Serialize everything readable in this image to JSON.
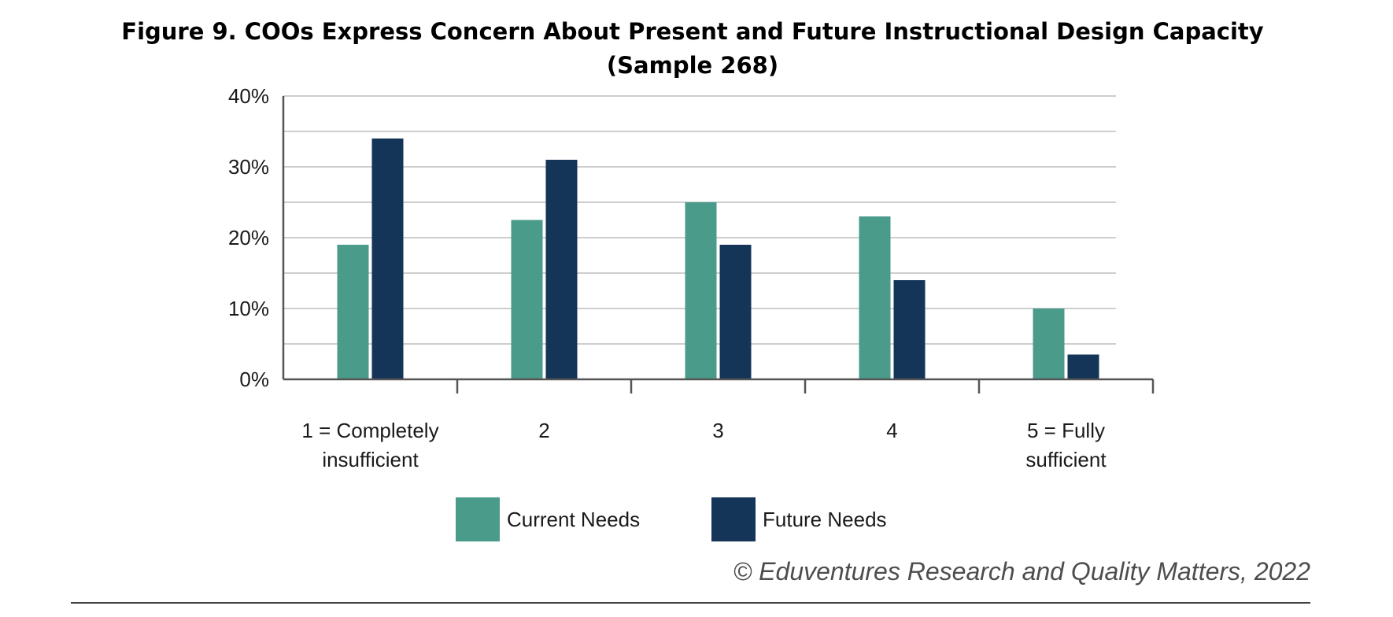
{
  "chart_data": {
    "type": "bar",
    "title": [
      "Figure 9. COOs Express Concern About Present and Future Instructional Design Capacity",
      "(Sample 268)"
    ],
    "categories": [
      [
        "1 = Completely",
        "insufficient"
      ],
      [
        "2"
      ],
      [
        "3"
      ],
      [
        "4"
      ],
      [
        "5 = Fully",
        "sufficient"
      ]
    ],
    "series": [
      {
        "name": "Current Needs",
        "color": "#4a9b89",
        "values": [
          19,
          22.5,
          25,
          23,
          10
        ]
      },
      {
        "name": "Future Needs",
        "color": "#143557",
        "values": [
          34,
          31,
          19,
          14,
          3.5
        ]
      }
    ],
    "ylim": [
      0,
      40
    ],
    "yticks": [
      0,
      10,
      20,
      30,
      40
    ],
    "ytick_labels": [
      "0%",
      "10%",
      "20%",
      "30%",
      "40%"
    ],
    "grid": true,
    "legend_position": "bottom-center"
  },
  "source": "© Eduventures Research and Quality Matters, 2022"
}
